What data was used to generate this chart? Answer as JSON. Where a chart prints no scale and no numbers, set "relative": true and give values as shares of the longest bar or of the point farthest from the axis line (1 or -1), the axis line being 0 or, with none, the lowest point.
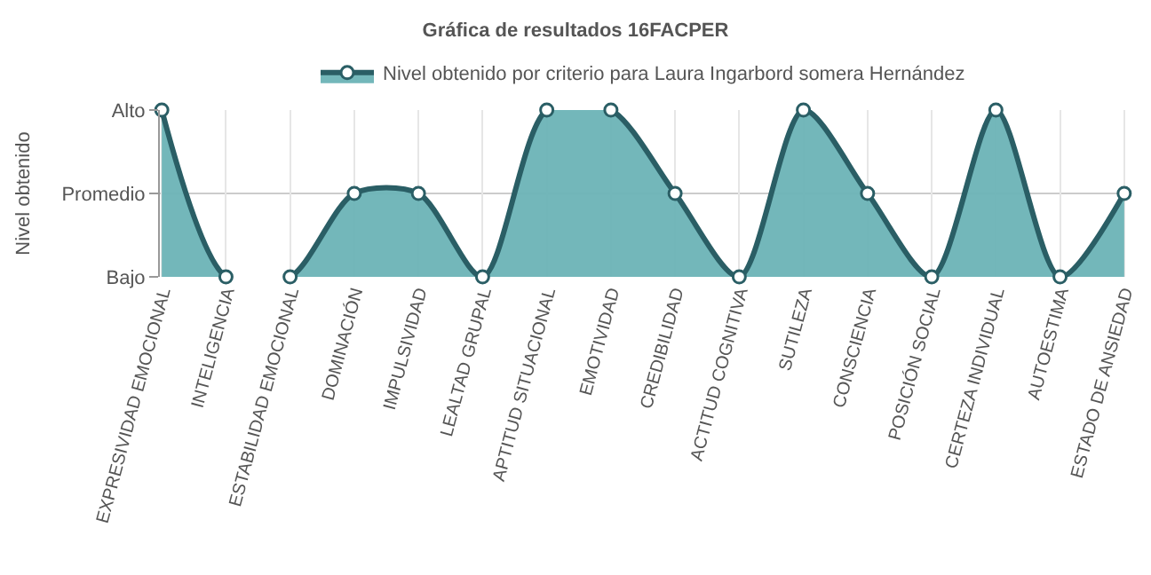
{
  "chart_data": {
    "type": "area",
    "title": "Gráfica de resultados 16FACPER",
    "ylabel": "Nivel obtenido",
    "categories": [
      "EXPRESIVIDAD EMOCIONAL",
      "INTELIGENCIA",
      "ESTABILIDAD EMOCIONAL",
      "DOMINACIÓN",
      "IMPULSIVIDAD",
      "LEALTAD GRUPAL",
      "APTITUD SITUACIONAL",
      "EMOTIVIDAD",
      "CREDIBILIDAD",
      "ACTITUD COGNITIVA",
      "SUTILEZA",
      "CONSCIENCIA",
      "POSICIÓN SOCIAL",
      "CERTEZA INDIVIDUAL",
      "AUTOESTIMA",
      "ESTADO DE ANSIEDAD"
    ],
    "series": [
      {
        "name": "Nivel obtenido por criterio para Laura Ingarbord somera Hernández",
        "color": "#6bb3b6",
        "values": [
          1,
          0,
          0,
          0.5,
          0.5,
          0,
          1,
          1,
          0.5,
          0,
          1,
          0.5,
          0,
          1,
          0,
          0.5
        ]
      }
    ],
    "relative": true,
    "annotations": [
      "Bajo",
      "Promedio",
      "Alto"
    ],
    "grid": "x",
    "ref_lines": [
      {
        "axis": "y",
        "value": 0.5,
        "color": "#cccccc"
      }
    ],
    "legend": "top",
    "marker": "circle",
    "line_style": "solid"
  }
}
